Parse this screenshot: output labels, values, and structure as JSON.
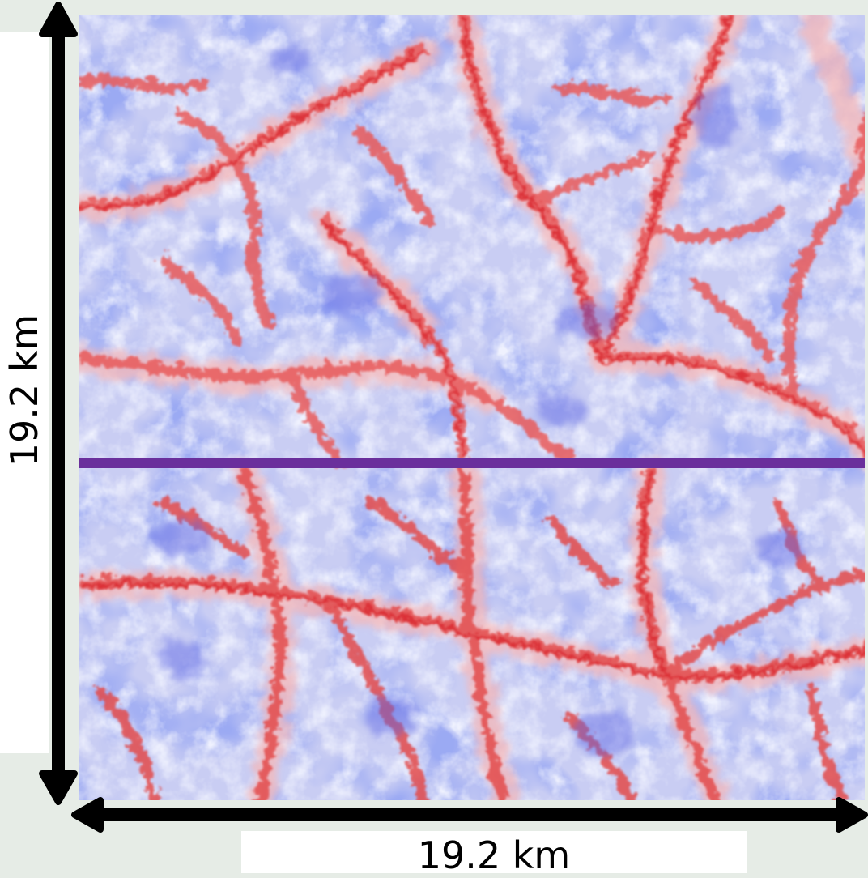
{
  "figure": {
    "horizontal_dimension_label": "19.2 km",
    "vertical_dimension_label": "19.2 km"
  },
  "colors": {
    "page_background": "#e6ece6",
    "field_low": "#4a5ae0",
    "field_mid": "#e6e8fb",
    "field_high": "#e84a4a",
    "cross_section_line": "#6a2f9c",
    "arrow": "#000000"
  }
}
